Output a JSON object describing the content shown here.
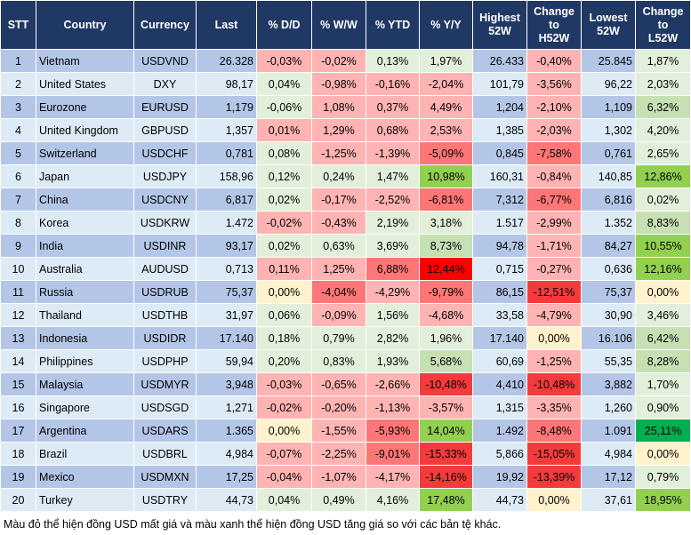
{
  "headers": [
    "STT",
    "Country",
    "Currency",
    "Last",
    "% D/D",
    "% W/W",
    "% YTD",
    "% Y/Y",
    "Highest 52W",
    "Change to H52W",
    "Lowest 52W",
    "Change to L52W"
  ],
  "colors": {
    "header": "#203864",
    "row_odd": "#b4c6e7",
    "row_even": "#ddebf7",
    "g": "#e2efda",
    "G": "#c6e0b4",
    "GG": "#92d050",
    "GGG": "#00b050",
    "r": "#ffb3b3",
    "R": "#ff7676",
    "RR": "#f43b3b",
    "RRR": "#ff0000",
    "y": "#fff2cc"
  },
  "rows": [
    {
      "cells": [
        "1",
        "Vietnam",
        "USDVND",
        "26.328",
        "-0,03%",
        "-0,02%",
        "0,13%",
        "1,97%",
        "26.433",
        "-0,40%",
        "25.845",
        "1,87%"
      ],
      "shade": [
        "r",
        "r",
        "g",
        "g",
        "r",
        "g"
      ]
    },
    {
      "cells": [
        "2",
        "United States",
        "DXY",
        "98,17",
        "0,04%",
        "-0,98%",
        "-0,16%",
        "-2,04%",
        "101,79",
        "-3,56%",
        "96,22",
        "2,03%"
      ],
      "shade": [
        "g",
        "r",
        "r",
        "r",
        "r",
        "g"
      ]
    },
    {
      "cells": [
        "3",
        "Eurozone",
        "EURUSD",
        "1,179",
        "-0,06%",
        "1,08%",
        "0,37%",
        "4,49%",
        "1,204",
        "-2,10%",
        "1,109",
        "6,32%"
      ],
      "shade": [
        "g",
        "r",
        "r",
        "r",
        "r",
        "G"
      ]
    },
    {
      "cells": [
        "4",
        "United Kingdom",
        "GBPUSD",
        "1,357",
        "0,01%",
        "1,29%",
        "0,68%",
        "2,53%",
        "1,385",
        "-2,03%",
        "1,302",
        "4,20%"
      ],
      "shade": [
        "r",
        "r",
        "r",
        "r",
        "r",
        "g"
      ]
    },
    {
      "cells": [
        "5",
        "Switzerland",
        "USDCHF",
        "0,781",
        "0,08%",
        "-1,25%",
        "-1,39%",
        "-5,09%",
        "0,845",
        "-7,58%",
        "0,761",
        "2,65%"
      ],
      "shade": [
        "g",
        "r",
        "r",
        "R",
        "R",
        "g"
      ]
    },
    {
      "cells": [
        "6",
        "Japan",
        "USDJPY",
        "158,96",
        "0,12%",
        "0,24%",
        "1,47%",
        "10,98%",
        "160,31",
        "-0,84%",
        "140,85",
        "12,86%"
      ],
      "shade": [
        "g",
        "g",
        "g",
        "GG",
        "r",
        "GG"
      ]
    },
    {
      "cells": [
        "7",
        "China",
        "USDCNY",
        "6,817",
        "0,02%",
        "-0,17%",
        "-2,52%",
        "-6,81%",
        "7,312",
        "-6,77%",
        "6,816",
        "0,02%"
      ],
      "shade": [
        "g",
        "r",
        "r",
        "R",
        "R",
        "g"
      ]
    },
    {
      "cells": [
        "8",
        "Korea",
        "USDKRW",
        "1.472",
        "-0,02%",
        "-0,43%",
        "2,19%",
        "3,18%",
        "1.517",
        "-2,99%",
        "1.352",
        "8,83%"
      ],
      "shade": [
        "r",
        "r",
        "g",
        "g",
        "r",
        "G"
      ]
    },
    {
      "cells": [
        "9",
        "India",
        "USDINR",
        "93,17",
        "0,02%",
        "0,63%",
        "3,69%",
        "8,73%",
        "94,78",
        "-1,71%",
        "84,27",
        "10,55%"
      ],
      "shade": [
        "g",
        "g",
        "g",
        "G",
        "r",
        "GG"
      ]
    },
    {
      "cells": [
        "10",
        "Australia",
        "AUDUSD",
        "0,713",
        "0,11%",
        "1,25%",
        "6,88%",
        "12,44%",
        "0,715",
        "-0,27%",
        "0,636",
        "12,16%"
      ],
      "shade": [
        "r",
        "r",
        "R",
        "RRR",
        "r",
        "GG"
      ]
    },
    {
      "cells": [
        "11",
        "Russia",
        "USDRUB",
        "75,37",
        "0,00%",
        "-4,04%",
        "-4,29%",
        "-9,79%",
        "86,15",
        "-12,51%",
        "75,37",
        "0,00%"
      ],
      "shade": [
        "y",
        "R",
        "r",
        "R",
        "RR",
        "y"
      ]
    },
    {
      "cells": [
        "12",
        "Thailand",
        "USDTHB",
        "31,97",
        "0,06%",
        "-0,09%",
        "1,56%",
        "-4,68%",
        "33,58",
        "-4,79%",
        "30,90",
        "3,46%"
      ],
      "shade": [
        "g",
        "r",
        "g",
        "r",
        "r",
        "g"
      ]
    },
    {
      "cells": [
        "13",
        "Indonesia",
        "USDIDR",
        "17.140",
        "0,18%",
        "0,79%",
        "2,82%",
        "1,96%",
        "17.140",
        "0,00%",
        "16.106",
        "6,42%"
      ],
      "shade": [
        "g",
        "g",
        "g",
        "g",
        "y",
        "G"
      ]
    },
    {
      "cells": [
        "14",
        "Philippines",
        "USDPHP",
        "59,94",
        "0,20%",
        "0,83%",
        "1,93%",
        "5,68%",
        "60,69",
        "-1,25%",
        "55,35",
        "8,28%"
      ],
      "shade": [
        "g",
        "g",
        "g",
        "G",
        "r",
        "G"
      ]
    },
    {
      "cells": [
        "15",
        "Malaysia",
        "USDMYR",
        "3,948",
        "-0,03%",
        "-0,65%",
        "-2,66%",
        "-10,48%",
        "4,410",
        "-10,48%",
        "3,882",
        "1,70%"
      ],
      "shade": [
        "r",
        "r",
        "r",
        "RR",
        "RR",
        "g"
      ]
    },
    {
      "cells": [
        "16",
        "Singapore",
        "USDSGD",
        "1,271",
        "-0,02%",
        "-0,20%",
        "-1,13%",
        "-3,57%",
        "1,315",
        "-3,35%",
        "1,260",
        "0,90%"
      ],
      "shade": [
        "r",
        "r",
        "r",
        "r",
        "r",
        "g"
      ]
    },
    {
      "cells": [
        "17",
        "Argentina",
        "USDARS",
        "1.365",
        "0,00%",
        "-1,55%",
        "-5,93%",
        "14,04%",
        "1.492",
        "-8,48%",
        "1.091",
        "25,11%"
      ],
      "shade": [
        "y",
        "r",
        "R",
        "GG",
        "R",
        "GGG"
      ]
    },
    {
      "cells": [
        "18",
        "Brazil",
        "USDBRL",
        "4,984",
        "-0,07%",
        "-2,25%",
        "-9,01%",
        "-15,33%",
        "5,866",
        "-15,05%",
        "4,984",
        "0,00%"
      ],
      "shade": [
        "r",
        "r",
        "R",
        "RR",
        "RR",
        "y"
      ]
    },
    {
      "cells": [
        "19",
        "Mexico",
        "USDMXN",
        "17,25",
        "-0,04%",
        "-1,07%",
        "-4,17%",
        "-14,16%",
        "19,92",
        "-13,39%",
        "17,12",
        "0,79%"
      ],
      "shade": [
        "r",
        "r",
        "r",
        "RR",
        "RR",
        "g"
      ]
    },
    {
      "cells": [
        "20",
        "Turkey",
        "USDTRY",
        "44,73",
        "0,04%",
        "0,49%",
        "4,16%",
        "17,48%",
        "44,73",
        "0,00%",
        "37,61",
        "18,95%"
      ],
      "shade": [
        "g",
        "g",
        "g",
        "GG",
        "y",
        "GG"
      ]
    }
  ],
  "footer": "Màu đỏ thể hiện đồng USD mất giá và màu xanh thể hiện đồng USD tăng giá so với các bản tệ khác."
}
